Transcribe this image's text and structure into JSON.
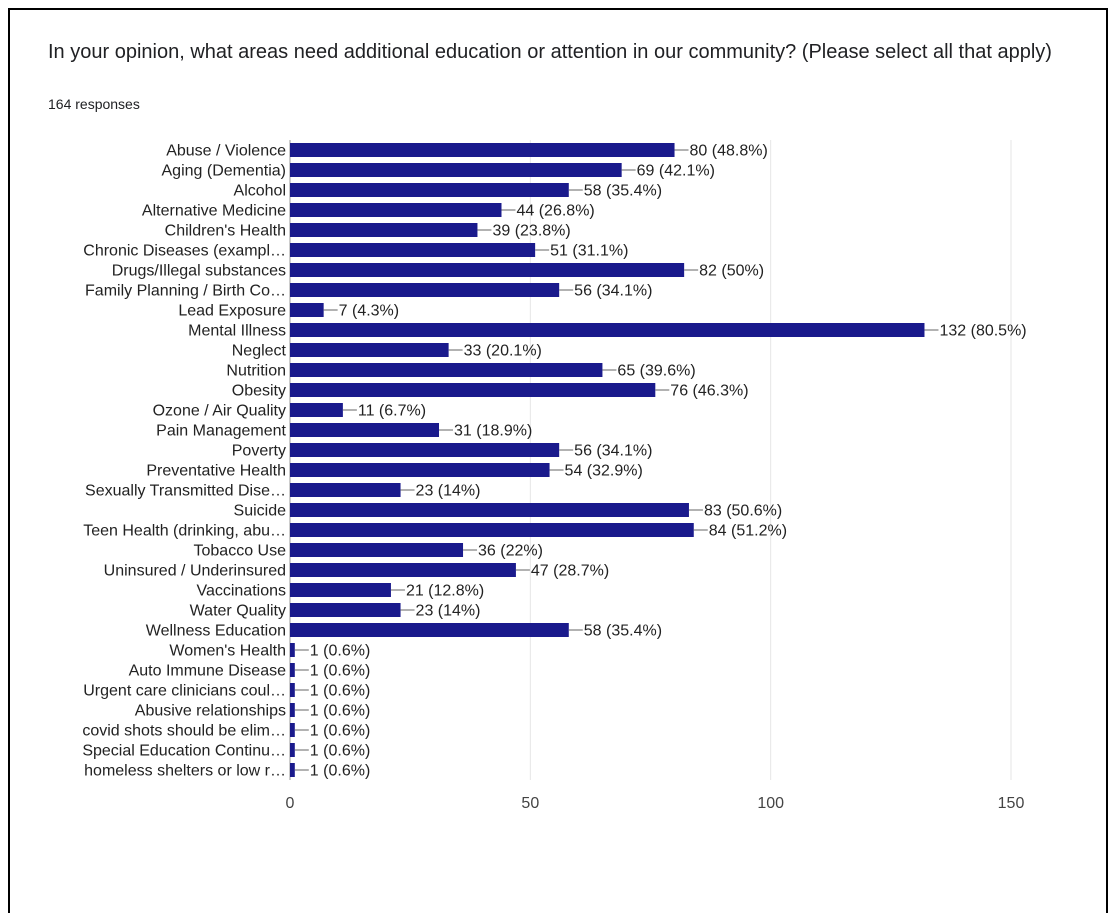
{
  "question": "In your opinion, what areas need additional education or attention in our community? (Please select all that apply)",
  "responses": "164 responses",
  "colors": {
    "bar": "#1a1a8c",
    "grid": "#e6e6e6",
    "axis": "#999999",
    "leader": "#666666"
  },
  "chart_data": {
    "type": "bar",
    "orientation": "horizontal",
    "title": "In your opinion, what areas need additional education or attention in our community? (Please select all that apply)",
    "subtitle": "164 responses",
    "xlabel": "",
    "ylabel": "",
    "xlim": [
      0,
      150
    ],
    "xticks": [
      0,
      50,
      100,
      150
    ],
    "grid": true,
    "categories": [
      "Abuse / Violence",
      "Aging (Dementia)",
      "Alcohol",
      "Alternative Medicine",
      "Children's Health",
      "Chronic Diseases (exampl…",
      "Drugs/Illegal substances",
      "Family Planning / Birth Co…",
      "Lead Exposure",
      "Mental Illness",
      "Neglect",
      "Nutrition",
      "Obesity",
      "Ozone / Air Quality",
      "Pain Management",
      "Poverty",
      "Preventative Health",
      "Sexually Transmitted Dise…",
      "Suicide",
      "Teen Health (drinking, abu…",
      "Tobacco Use",
      "Uninsured / Underinsured",
      "Vaccinations",
      "Water Quality",
      "Wellness Education",
      "Women's Health",
      "Auto Immune Disease",
      "Urgent care clinicians coul…",
      "Abusive relationships",
      "covid shots should be elim…",
      "Special Education Continu…",
      "homeless shelters or low r…"
    ],
    "values": [
      80,
      69,
      58,
      44,
      39,
      51,
      82,
      56,
      7,
      132,
      33,
      65,
      76,
      11,
      31,
      56,
      54,
      23,
      83,
      84,
      36,
      47,
      21,
      23,
      58,
      1,
      1,
      1,
      1,
      1,
      1,
      1
    ],
    "labels": [
      "80 (48.8%)",
      "69 (42.1%)",
      "58 (35.4%)",
      "44 (26.8%)",
      "39 (23.8%)",
      "51 (31.1%)",
      "82 (50%)",
      "56 (34.1%)",
      "7 (4.3%)",
      "132 (80.5%)",
      "33 (20.1%)",
      "65 (39.6%)",
      "76 (46.3%)",
      "11 (6.7%)",
      "31 (18.9%)",
      "56 (34.1%)",
      "54 (32.9%)",
      "23 (14%)",
      "83 (50.6%)",
      "84 (51.2%)",
      "36 (22%)",
      "47 (28.7%)",
      "21 (12.8%)",
      "23 (14%)",
      "58 (35.4%)",
      "1 (0.6%)",
      "1 (0.6%)",
      "1 (0.6%)",
      "1 (0.6%)",
      "1 (0.6%)",
      "1 (0.6%)",
      "1 (0.6%)"
    ]
  }
}
